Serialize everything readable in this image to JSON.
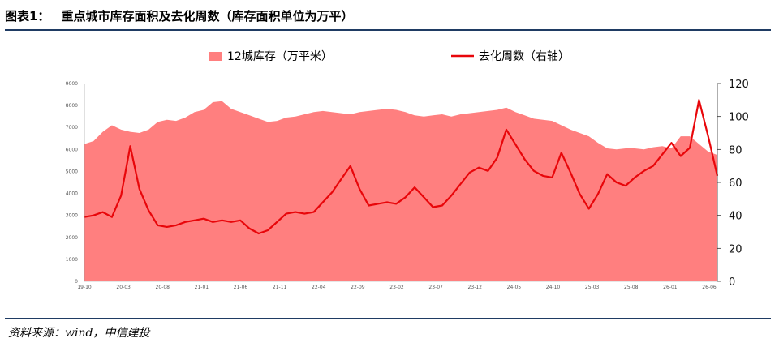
{
  "figure": {
    "number": "图表1：",
    "title": "重点城市库存面积及去化周数（库存面积单位为万平）"
  },
  "source": "资料来源：wind，中信建投",
  "colors": {
    "area": "#ff7f7f",
    "line": "#e8060a",
    "rule": "#1f3b63"
  },
  "chart_data": {
    "type": "area",
    "series": [
      {
        "name": "12城库存（万平米）",
        "type": "area",
        "axis": "left"
      },
      {
        "name": "去化周数（右轴）",
        "type": "line",
        "axis": "right"
      }
    ],
    "x_ticks": [
      "19-10",
      "20-03",
      "20-08",
      "21-01",
      "21-06",
      "21-11",
      "22-04",
      "22-09",
      "23-02",
      "23-07",
      "23-12",
      "24-05",
      "24-10",
      "25-03",
      "25-08",
      "26-01",
      "26-06"
    ],
    "y_left": {
      "min": 0,
      "max": 9000,
      "ticks": [
        "0",
        "1000",
        "2000",
        "3000",
        "4000",
        "5000",
        "6000",
        "7000",
        "8000",
        "9000"
      ]
    },
    "y_right": {
      "min": 0,
      "max": 120,
      "ticks": [
        "0",
        "20",
        "40",
        "60",
        "80",
        "100",
        "120"
      ]
    },
    "inventory": [
      [
        0,
        6250
      ],
      [
        1,
        6380
      ],
      [
        2,
        6800
      ],
      [
        3,
        7100
      ],
      [
        4,
        6900
      ],
      [
        5,
        6800
      ],
      [
        6,
        6750
      ],
      [
        7,
        6900
      ],
      [
        8,
        7250
      ],
      [
        9,
        7350
      ],
      [
        10,
        7300
      ],
      [
        11,
        7450
      ],
      [
        12,
        7700
      ],
      [
        13,
        7800
      ],
      [
        14,
        8150
      ],
      [
        15,
        8200
      ],
      [
        16,
        7850
      ],
      [
        17,
        7700
      ],
      [
        18,
        7550
      ],
      [
        19,
        7400
      ],
      [
        20,
        7250
      ],
      [
        21,
        7300
      ],
      [
        22,
        7450
      ],
      [
        23,
        7500
      ],
      [
        24,
        7600
      ],
      [
        25,
        7700
      ],
      [
        26,
        7750
      ],
      [
        27,
        7700
      ],
      [
        28,
        7650
      ],
      [
        29,
        7600
      ],
      [
        30,
        7700
      ],
      [
        31,
        7750
      ],
      [
        32,
        7800
      ],
      [
        33,
        7850
      ],
      [
        34,
        7800
      ],
      [
        35,
        7700
      ],
      [
        36,
        7550
      ],
      [
        37,
        7500
      ],
      [
        38,
        7550
      ],
      [
        39,
        7600
      ],
      [
        40,
        7500
      ],
      [
        41,
        7600
      ],
      [
        42,
        7650
      ],
      [
        43,
        7700
      ],
      [
        44,
        7750
      ],
      [
        45,
        7800
      ],
      [
        46,
        7900
      ],
      [
        47,
        7700
      ],
      [
        48,
        7550
      ],
      [
        49,
        7400
      ],
      [
        50,
        7350
      ],
      [
        51,
        7300
      ],
      [
        52,
        7100
      ],
      [
        53,
        6900
      ],
      [
        54,
        6750
      ],
      [
        55,
        6600
      ],
      [
        56,
        6300
      ],
      [
        57,
        6050
      ],
      [
        58,
        6000
      ],
      [
        59,
        6050
      ],
      [
        60,
        6050
      ],
      [
        61,
        6000
      ],
      [
        62,
        6100
      ],
      [
        63,
        6150
      ],
      [
        64,
        6050
      ],
      [
        65,
        6600
      ],
      [
        66,
        6600
      ],
      [
        67,
        6250
      ],
      [
        68,
        5900
      ],
      [
        69,
        5750
      ]
    ],
    "weeks": [
      [
        0,
        39
      ],
      [
        1,
        40
      ],
      [
        2,
        42
      ],
      [
        3,
        39
      ],
      [
        4,
        52
      ],
      [
        5,
        82
      ],
      [
        6,
        56
      ],
      [
        7,
        43
      ],
      [
        8,
        34
      ],
      [
        9,
        33
      ],
      [
        10,
        34
      ],
      [
        11,
        36
      ],
      [
        12,
        37
      ],
      [
        13,
        38
      ],
      [
        14,
        36
      ],
      [
        15,
        37
      ],
      [
        16,
        36
      ],
      [
        17,
        37
      ],
      [
        18,
        32
      ],
      [
        19,
        29
      ],
      [
        20,
        31
      ],
      [
        21,
        36
      ],
      [
        22,
        41
      ],
      [
        23,
        42
      ],
      [
        24,
        41
      ],
      [
        25,
        42
      ],
      [
        26,
        48
      ],
      [
        27,
        54
      ],
      [
        28,
        62
      ],
      [
        29,
        70
      ],
      [
        30,
        56
      ],
      [
        31,
        46
      ],
      [
        32,
        47
      ],
      [
        33,
        48
      ],
      [
        34,
        47
      ],
      [
        35,
        51
      ],
      [
        36,
        57
      ],
      [
        37,
        51
      ],
      [
        38,
        45
      ],
      [
        39,
        46
      ],
      [
        40,
        52
      ],
      [
        41,
        59
      ],
      [
        42,
        66
      ],
      [
        43,
        69
      ],
      [
        44,
        67
      ],
      [
        45,
        75
      ],
      [
        46,
        92
      ],
      [
        47,
        83
      ],
      [
        48,
        74
      ],
      [
        49,
        67
      ],
      [
        50,
        64
      ],
      [
        51,
        63
      ],
      [
        52,
        78
      ],
      [
        53,
        66
      ],
      [
        54,
        53
      ],
      [
        55,
        44
      ],
      [
        56,
        53
      ],
      [
        57,
        65
      ],
      [
        58,
        60
      ],
      [
        59,
        58
      ],
      [
        60,
        63
      ],
      [
        61,
        67
      ],
      [
        62,
        70
      ],
      [
        63,
        77
      ],
      [
        64,
        84
      ],
      [
        65,
        76
      ],
      [
        66,
        81
      ],
      [
        67,
        110
      ],
      [
        68,
        88
      ],
      [
        69,
        64
      ]
    ]
  }
}
